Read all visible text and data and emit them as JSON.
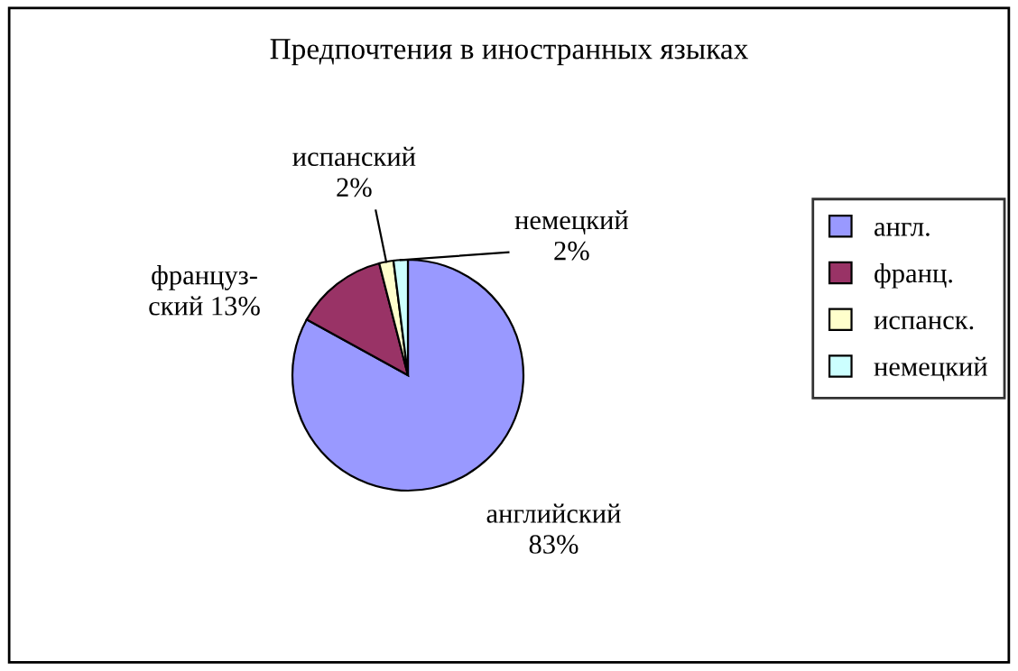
{
  "chart_data": {
    "type": "pie",
    "title": "Предпочтения в иностранных языках",
    "categories": [
      "англ.",
      "франц.",
      "испанск.",
      "немецкий"
    ],
    "values": [
      83,
      13,
      2,
      2
    ],
    "value_labels": [
      "английский\n83%",
      "француз-\nский 13%",
      "испанский\n2%",
      "немецкий\n2%"
    ],
    "colors": [
      "#9999ff",
      "#993366",
      "#ffffcc",
      "#ccffff"
    ],
    "legend": "right"
  }
}
